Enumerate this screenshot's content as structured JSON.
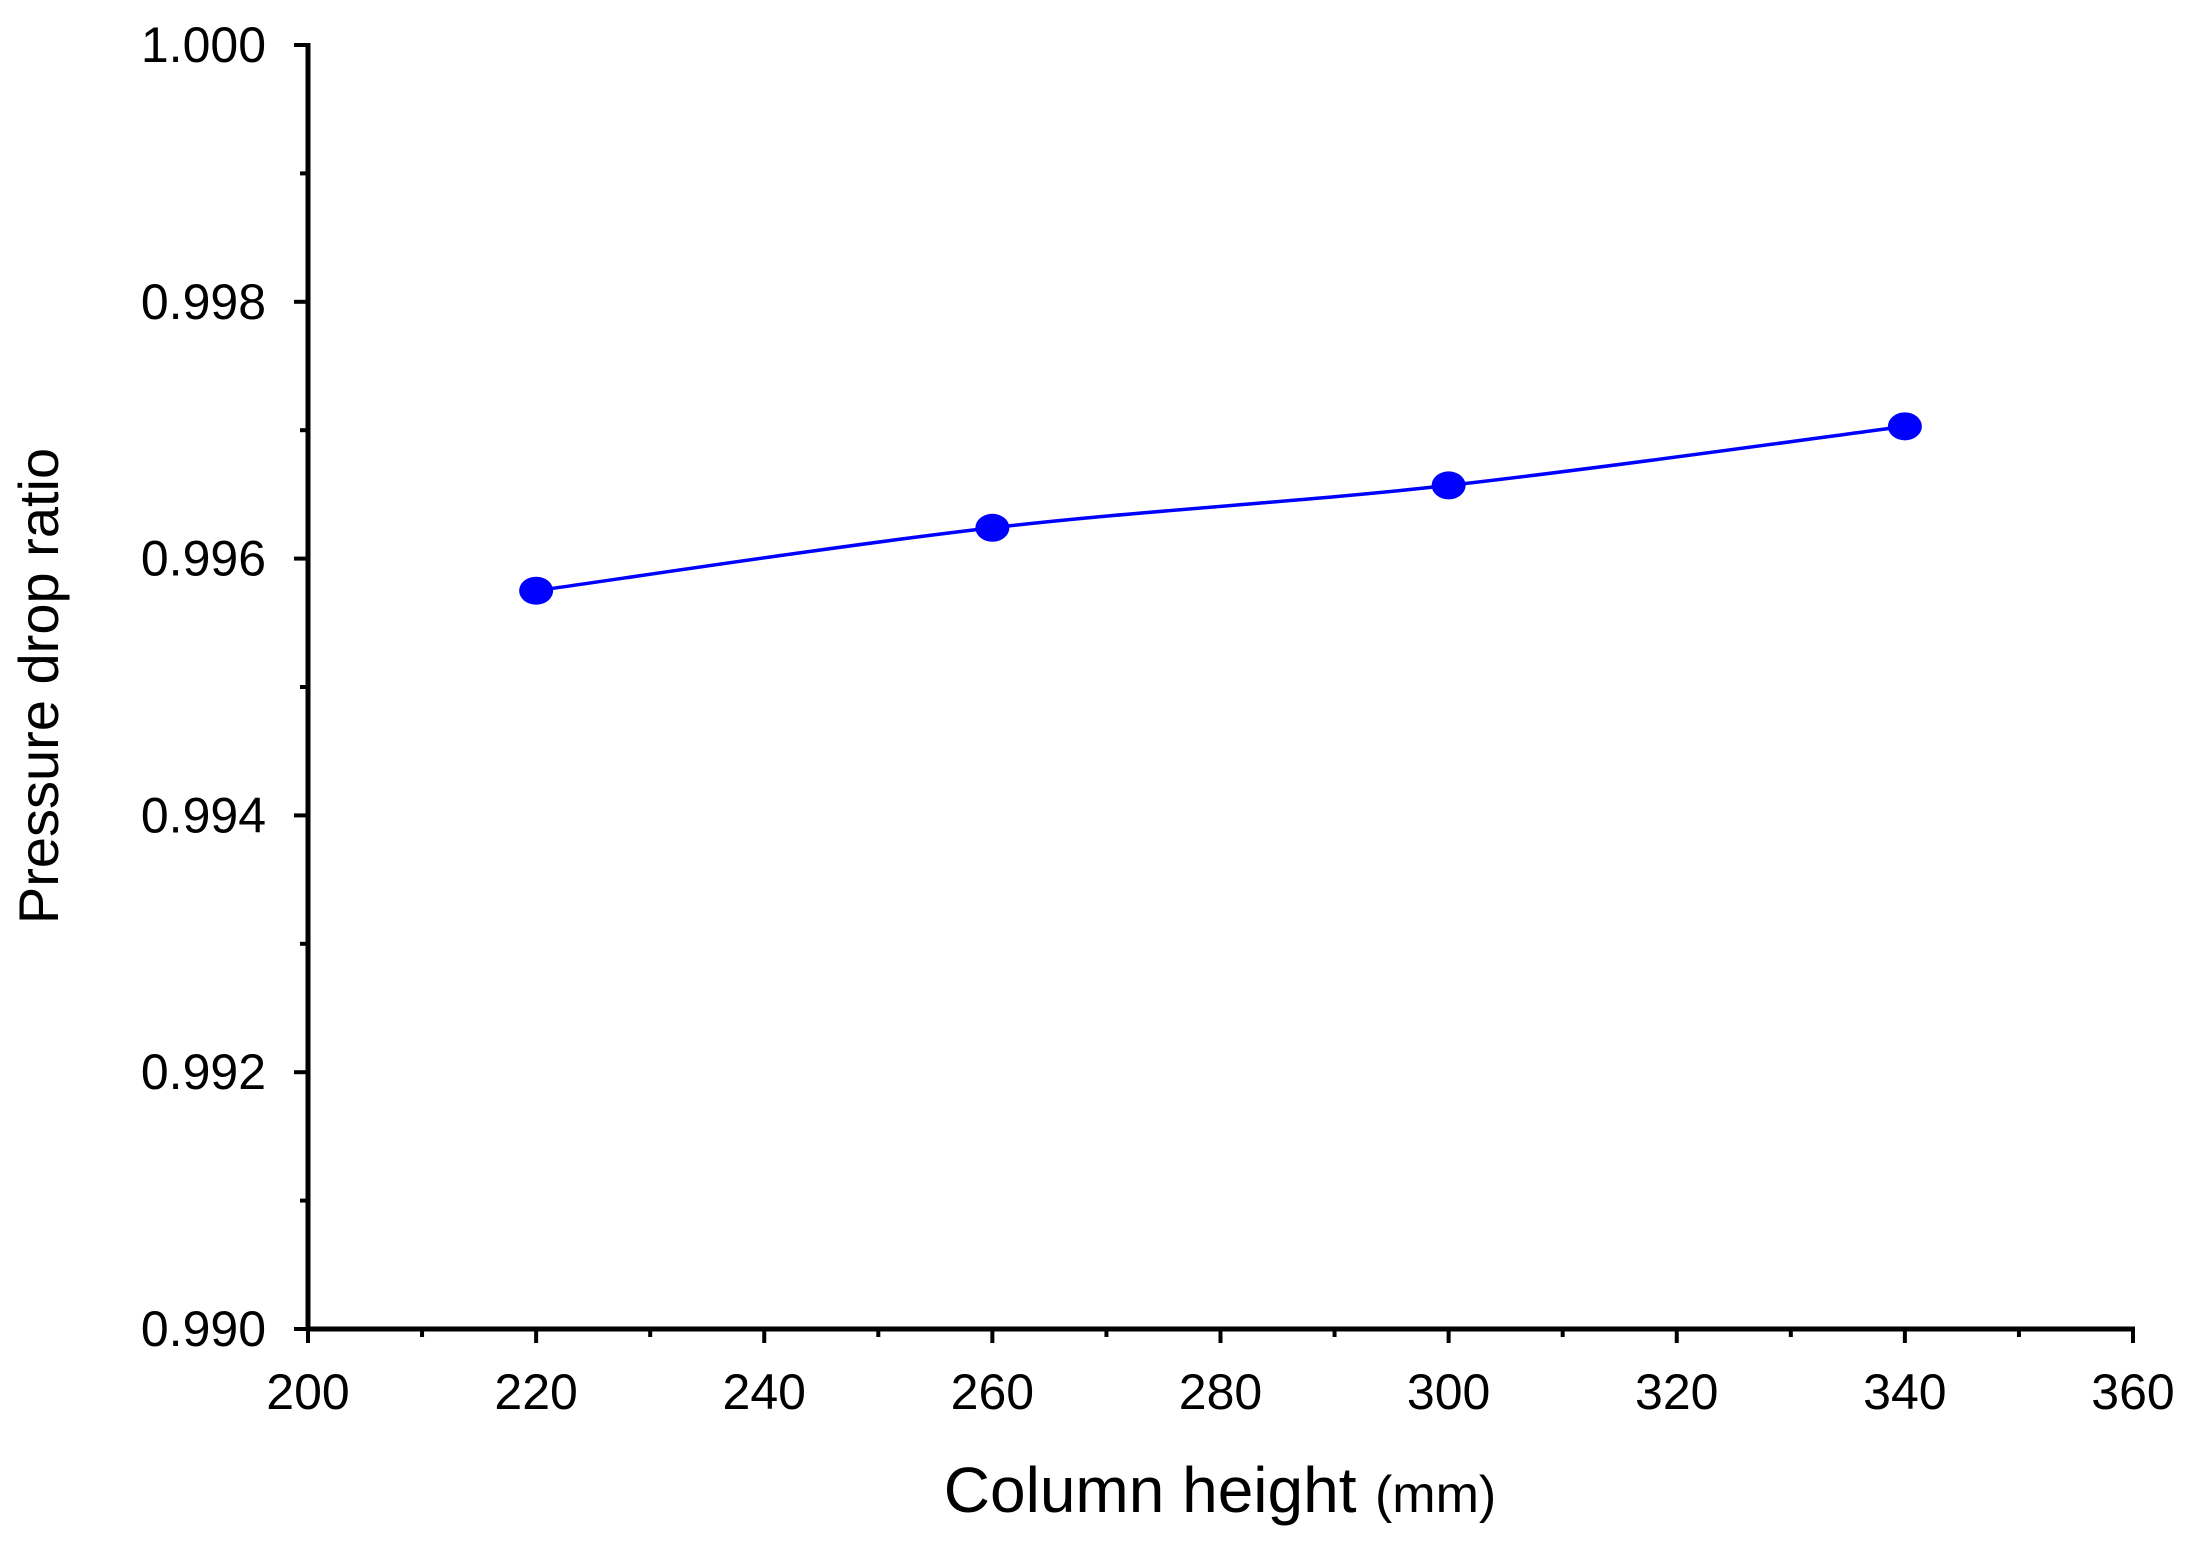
{
  "chart_data": {
    "type": "line",
    "title": "",
    "xlabel": "Column height",
    "xlabel_unit": "(mm)",
    "ylabel": "Pressure drop ratio",
    "xlim": [
      200,
      360
    ],
    "ylim": [
      0.99,
      1.0
    ],
    "x_ticks": [
      "200",
      "220",
      "240",
      "260",
      "280",
      "300",
      "320",
      "340",
      "360"
    ],
    "y_ticks": [
      "0.990",
      "0.992",
      "0.994",
      "0.996",
      "0.998",
      "1.000"
    ],
    "x_minor_step": 10,
    "y_minor_step": 0.001,
    "grid": false,
    "legend": "none",
    "series": [
      {
        "color": "#0000ff",
        "marker": "circle",
        "x": [
          220,
          260,
          300,
          340
        ],
        "y": [
          0.99575,
          0.99624,
          0.99657,
          0.99703
        ]
      }
    ]
  }
}
